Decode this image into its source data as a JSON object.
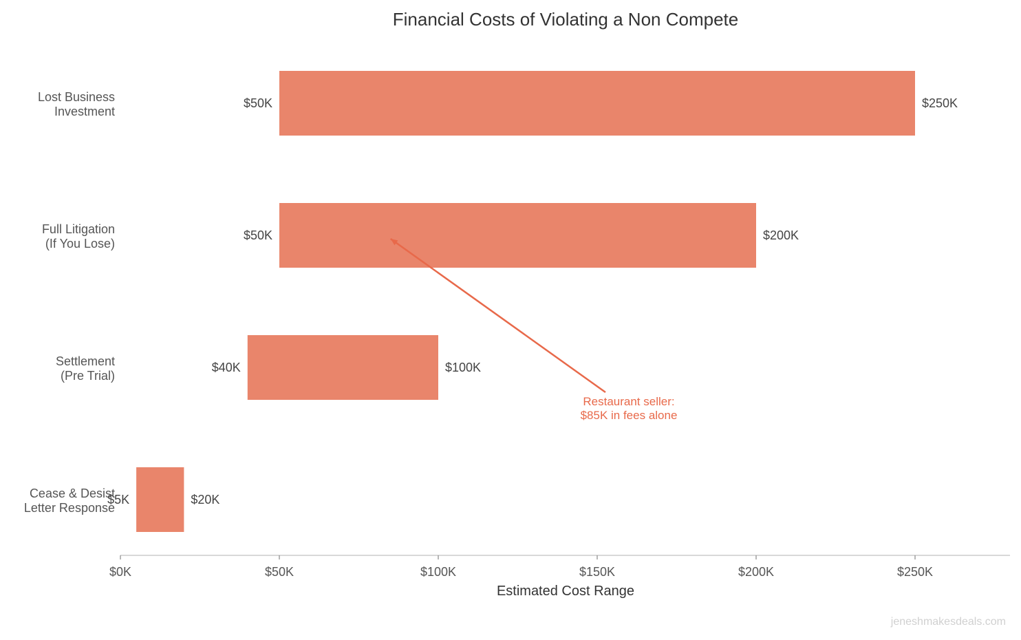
{
  "chart_data": {
    "type": "bar",
    "orientation": "horizontal",
    "style": "floating-range",
    "title": "Financial Costs of Violating a Non Compete",
    "xlabel": "Estimated Cost Range",
    "ylabel": "",
    "xlim": [
      0,
      280
    ],
    "x_unit": "thousand USD",
    "x_ticks": [
      0,
      50,
      100,
      150,
      200,
      250
    ],
    "x_tick_labels": [
      "$0K",
      "$50K",
      "$100K",
      "$150K",
      "$200K",
      "$250K"
    ],
    "grid": false,
    "categories": [
      [
        "Lost Business",
        "Investment"
      ],
      [
        "Full Litigation",
        "(If You Lose)"
      ],
      [
        "Settlement",
        "(Pre Trial)"
      ],
      [
        "Cease & Desist",
        "Letter Response"
      ]
    ],
    "ranges": [
      [
        50,
        250
      ],
      [
        50,
        200
      ],
      [
        40,
        100
      ],
      [
        5,
        20
      ]
    ],
    "low_labels": [
      "$50K",
      "$50K",
      "$40K",
      "$5K"
    ],
    "high_labels": [
      "$250K",
      "$200K",
      "$100K",
      "$20K"
    ],
    "annotation": {
      "lines": [
        "Restaurant seller:",
        "$85K in fees alone"
      ],
      "points_to": {
        "x": 85,
        "category_index": 1
      }
    },
    "colors": {
      "bar": "#E9856B",
      "annotation": "#E8694A",
      "text": "#444444"
    }
  },
  "watermark": "jeneshmakesdeals.com"
}
